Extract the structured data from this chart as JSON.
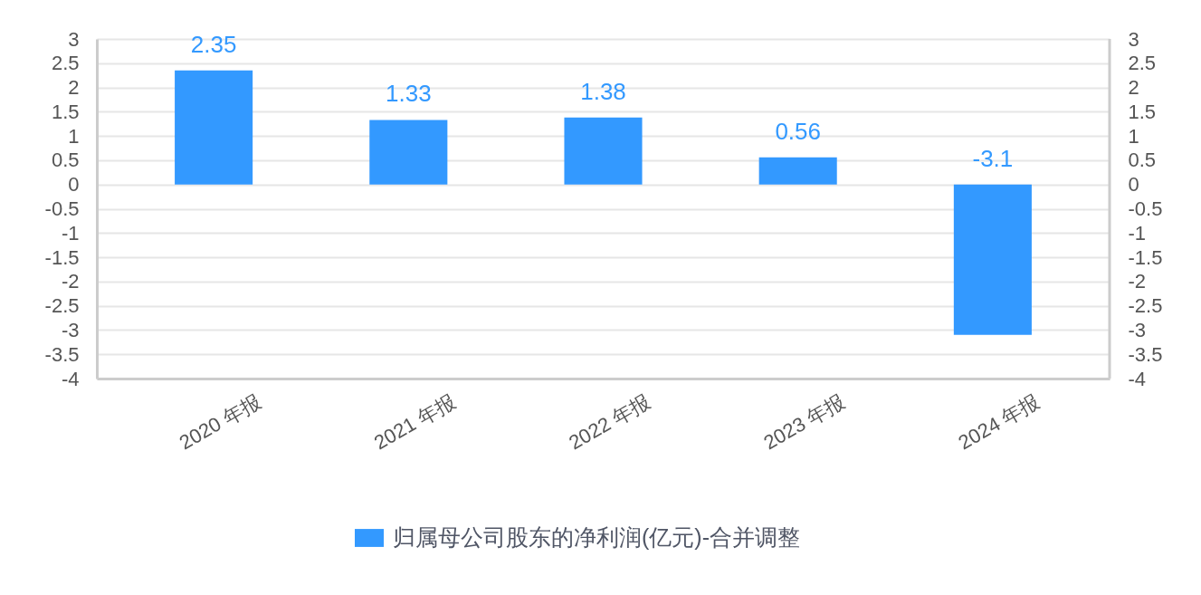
{
  "chart_data": {
    "type": "bar",
    "categories": [
      "2020 年报",
      "2021 年报",
      "2022 年报",
      "2023 年报",
      "2024 年报"
    ],
    "series": [
      {
        "name": "归属母公司股东的净利润(亿元)-合并调整",
        "color": "#3399ff",
        "values": [
          2.35,
          1.33,
          1.38,
          0.56,
          -3.1
        ]
      }
    ],
    "ylim": [
      -4,
      3
    ],
    "yticks": [
      -4,
      -3.5,
      -3,
      -2.5,
      -2,
      -1.5,
      -1,
      -0.5,
      0,
      0.5,
      1,
      1.5,
      2,
      2.5,
      3
    ],
    "y2lim": [
      -4,
      3
    ],
    "y2ticks": [
      -4,
      -3.5,
      -3,
      -2.5,
      -2,
      -1.5,
      -1,
      -0.5,
      0,
      0.5,
      1,
      1.5,
      2,
      2.5,
      3
    ],
    "grid": "y",
    "legend": "bottom",
    "data_labels": true
  }
}
